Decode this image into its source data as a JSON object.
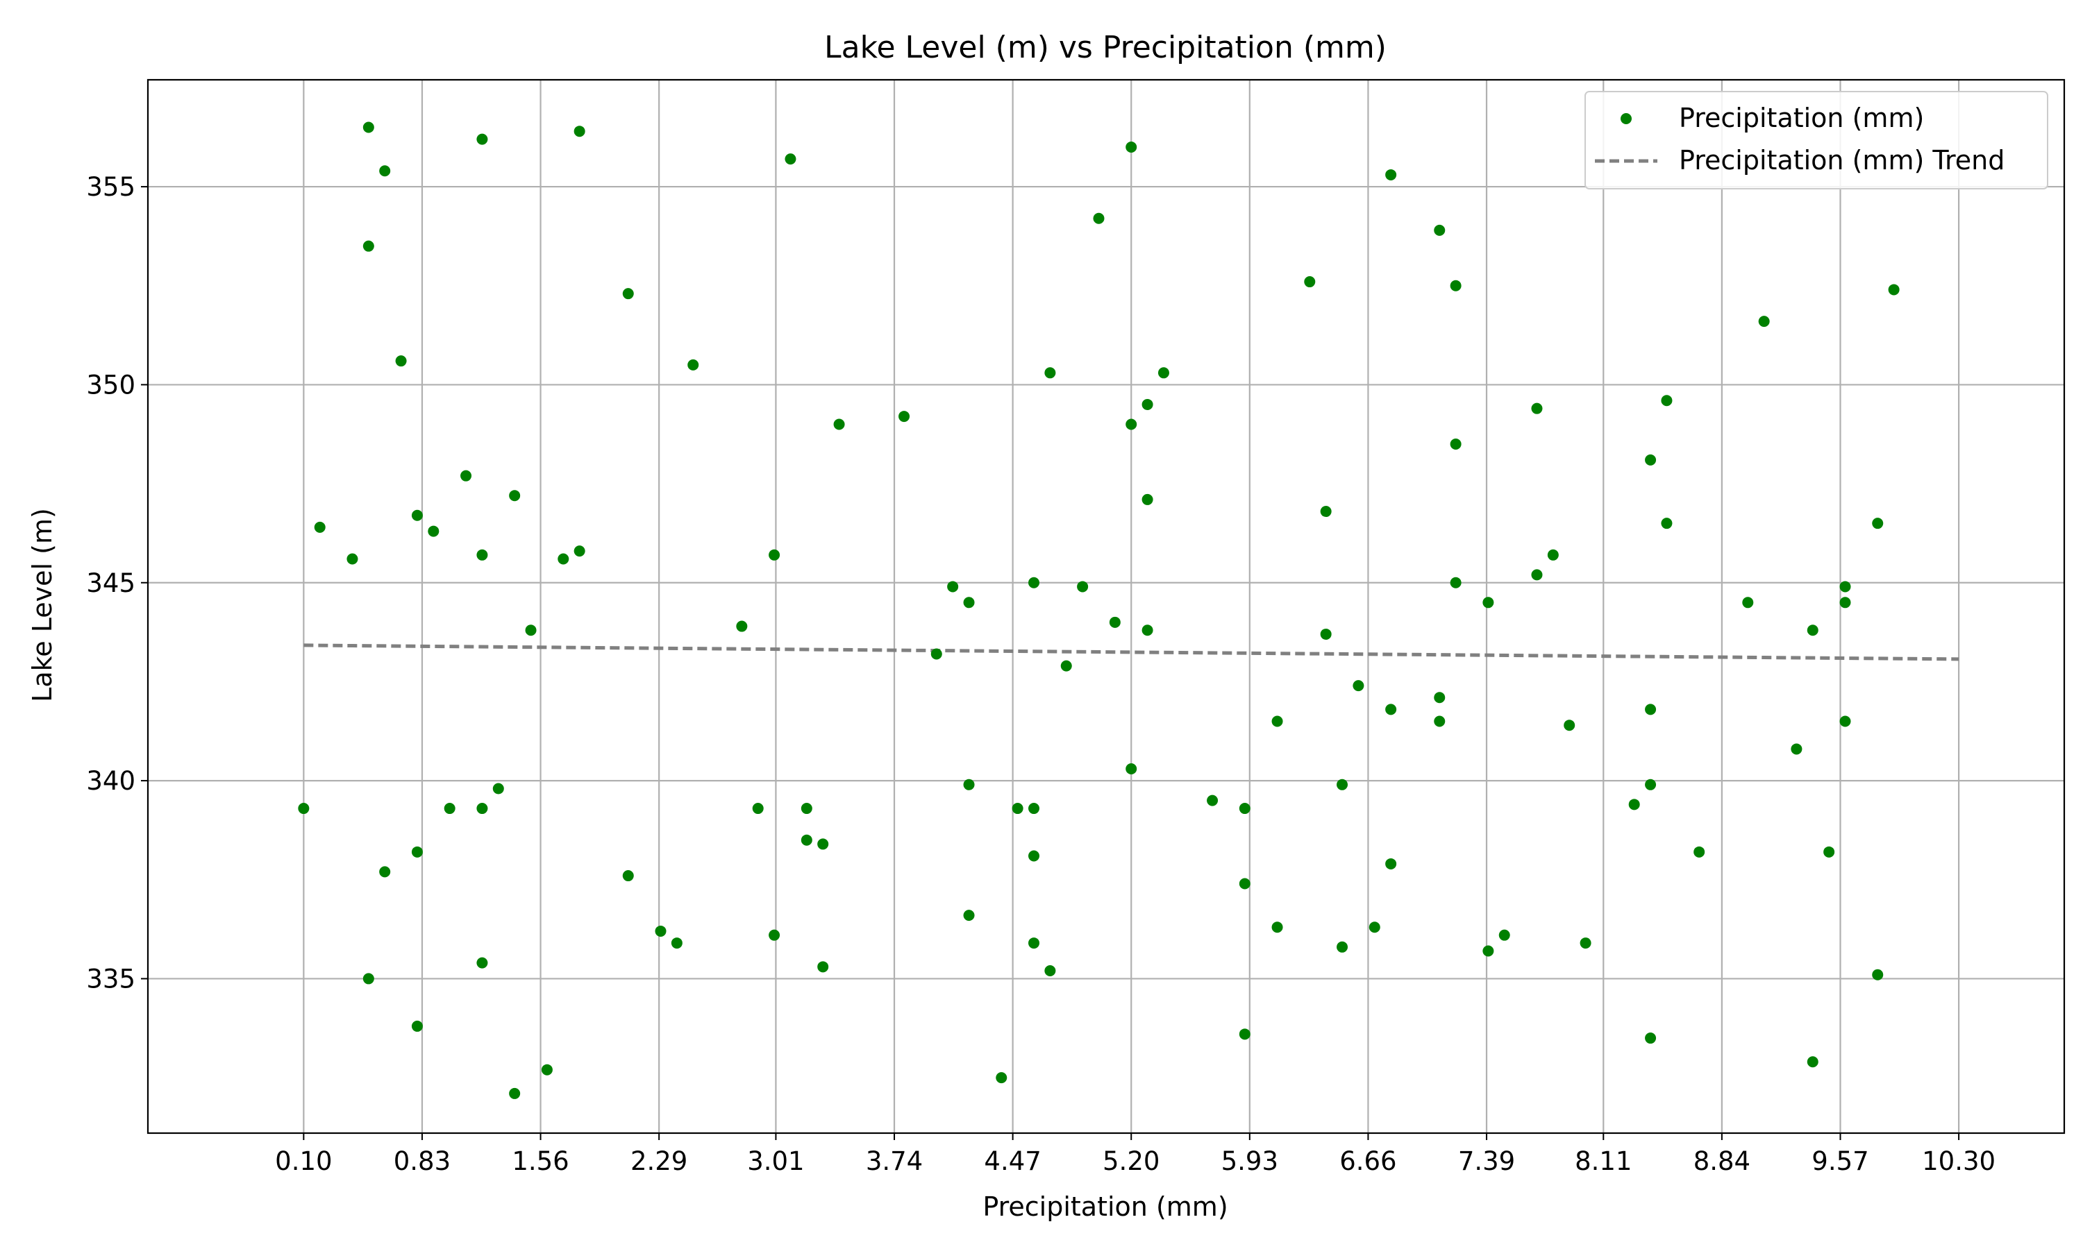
{
  "chart_data": {
    "type": "scatter",
    "title": "Lake Level (m) vs Precipitation (mm)",
    "xlabel": "Precipitation (mm)",
    "ylabel": "Lake Level (m)",
    "xlim": [
      -0.86,
      10.95
    ],
    "ylim": [
      331.1,
      357.7
    ],
    "x_ticks": [
      0.1,
      0.83,
      1.56,
      2.29,
      3.01,
      3.74,
      4.47,
      5.2,
      5.93,
      6.66,
      7.39,
      8.11,
      8.84,
      9.57,
      10.3
    ],
    "x_tick_labels": [
      "0.10",
      "0.83",
      "1.56",
      "2.29",
      "3.01",
      "3.74",
      "4.47",
      "5.20",
      "5.93",
      "6.66",
      "7.39",
      "8.11",
      "8.84",
      "9.57",
      "10.30"
    ],
    "y_ticks": [
      335,
      340,
      345,
      350,
      355
    ],
    "y_tick_labels": [
      "335",
      "340",
      "345",
      "350",
      "355"
    ],
    "grid": true,
    "legend_position": "top-right",
    "colors": {
      "scatter": "#008000",
      "trend": "#808080"
    },
    "series": [
      {
        "name": "Precipitation (mm)",
        "kind": "scatter",
        "points": [
          [
            0.1,
            339.3
          ],
          [
            0.2,
            346.4
          ],
          [
            0.4,
            345.6
          ],
          [
            0.5,
            356.5
          ],
          [
            0.5,
            353.5
          ],
          [
            0.5,
            335.0
          ],
          [
            0.6,
            355.4
          ],
          [
            0.6,
            337.7
          ],
          [
            0.7,
            350.6
          ],
          [
            0.8,
            346.7
          ],
          [
            0.8,
            338.2
          ],
          [
            0.8,
            333.8
          ],
          [
            0.9,
            346.3
          ],
          [
            1.0,
            339.3
          ],
          [
            1.1,
            347.7
          ],
          [
            1.2,
            356.2
          ],
          [
            1.2,
            345.7
          ],
          [
            1.2,
            339.3
          ],
          [
            1.2,
            335.4
          ],
          [
            1.3,
            339.8
          ],
          [
            1.4,
            347.2
          ],
          [
            1.4,
            332.1
          ],
          [
            1.5,
            343.8
          ],
          [
            1.6,
            332.7
          ],
          [
            1.7,
            345.6
          ],
          [
            1.8,
            356.4
          ],
          [
            1.8,
            345.8
          ],
          [
            2.1,
            352.3
          ],
          [
            2.1,
            337.6
          ],
          [
            2.3,
            336.2
          ],
          [
            2.4,
            335.9
          ],
          [
            2.5,
            350.5
          ],
          [
            2.8,
            343.9
          ],
          [
            2.9,
            339.3
          ],
          [
            3.0,
            345.7
          ],
          [
            3.0,
            336.1
          ],
          [
            3.1,
            355.7
          ],
          [
            3.2,
            339.3
          ],
          [
            3.2,
            338.5
          ],
          [
            3.3,
            338.4
          ],
          [
            3.3,
            335.3
          ],
          [
            3.4,
            349.0
          ],
          [
            3.8,
            349.2
          ],
          [
            4.0,
            343.2
          ],
          [
            4.1,
            344.9
          ],
          [
            4.2,
            344.5
          ],
          [
            4.2,
            339.9
          ],
          [
            4.2,
            336.6
          ],
          [
            4.4,
            332.5
          ],
          [
            4.5,
            339.3
          ],
          [
            4.6,
            345.0
          ],
          [
            4.6,
            339.3
          ],
          [
            4.6,
            338.1
          ],
          [
            4.6,
            335.9
          ],
          [
            4.7,
            350.3
          ],
          [
            4.7,
            335.2
          ],
          [
            4.8,
            342.9
          ],
          [
            4.9,
            344.9
          ],
          [
            5.0,
            354.2
          ],
          [
            5.1,
            344.0
          ],
          [
            5.2,
            356.0
          ],
          [
            5.2,
            349.0
          ],
          [
            5.2,
            340.3
          ],
          [
            5.3,
            349.5
          ],
          [
            5.3,
            347.1
          ],
          [
            5.3,
            343.8
          ],
          [
            5.4,
            350.3
          ],
          [
            5.7,
            339.5
          ],
          [
            5.9,
            339.3
          ],
          [
            5.9,
            337.4
          ],
          [
            5.9,
            333.6
          ],
          [
            6.1,
            341.5
          ],
          [
            6.1,
            336.3
          ],
          [
            6.3,
            352.6
          ],
          [
            6.4,
            346.8
          ],
          [
            6.4,
            343.7
          ],
          [
            6.5,
            339.9
          ],
          [
            6.5,
            335.8
          ],
          [
            6.6,
            342.4
          ],
          [
            6.7,
            336.3
          ],
          [
            6.8,
            355.3
          ],
          [
            6.8,
            341.8
          ],
          [
            6.8,
            337.9
          ],
          [
            7.1,
            353.9
          ],
          [
            7.1,
            342.1
          ],
          [
            7.1,
            341.5
          ],
          [
            7.2,
            352.5
          ],
          [
            7.2,
            348.5
          ],
          [
            7.2,
            345.0
          ],
          [
            7.4,
            344.5
          ],
          [
            7.4,
            335.7
          ],
          [
            7.5,
            336.1
          ],
          [
            7.7,
            349.4
          ],
          [
            7.7,
            345.2
          ],
          [
            7.8,
            345.7
          ],
          [
            7.9,
            341.4
          ],
          [
            8.0,
            335.9
          ],
          [
            8.3,
            339.4
          ],
          [
            8.4,
            348.1
          ],
          [
            8.4,
            341.8
          ],
          [
            8.4,
            339.9
          ],
          [
            8.4,
            333.5
          ],
          [
            8.5,
            349.6
          ],
          [
            8.5,
            346.5
          ],
          [
            8.7,
            338.2
          ],
          [
            9.0,
            344.5
          ],
          [
            9.1,
            351.6
          ],
          [
            9.3,
            340.8
          ],
          [
            9.4,
            343.8
          ],
          [
            9.4,
            332.9
          ],
          [
            9.5,
            338.2
          ],
          [
            9.6,
            344.9
          ],
          [
            9.6,
            344.5
          ],
          [
            9.6,
            341.5
          ],
          [
            9.8,
            346.5
          ],
          [
            9.8,
            335.1
          ],
          [
            9.9,
            352.4
          ]
        ]
      },
      {
        "name": "Precipitation (mm) Trend",
        "kind": "line",
        "style": "dashed",
        "x": [
          0.1,
          10.3
        ],
        "y": [
          343.42,
          343.07
        ]
      }
    ]
  }
}
